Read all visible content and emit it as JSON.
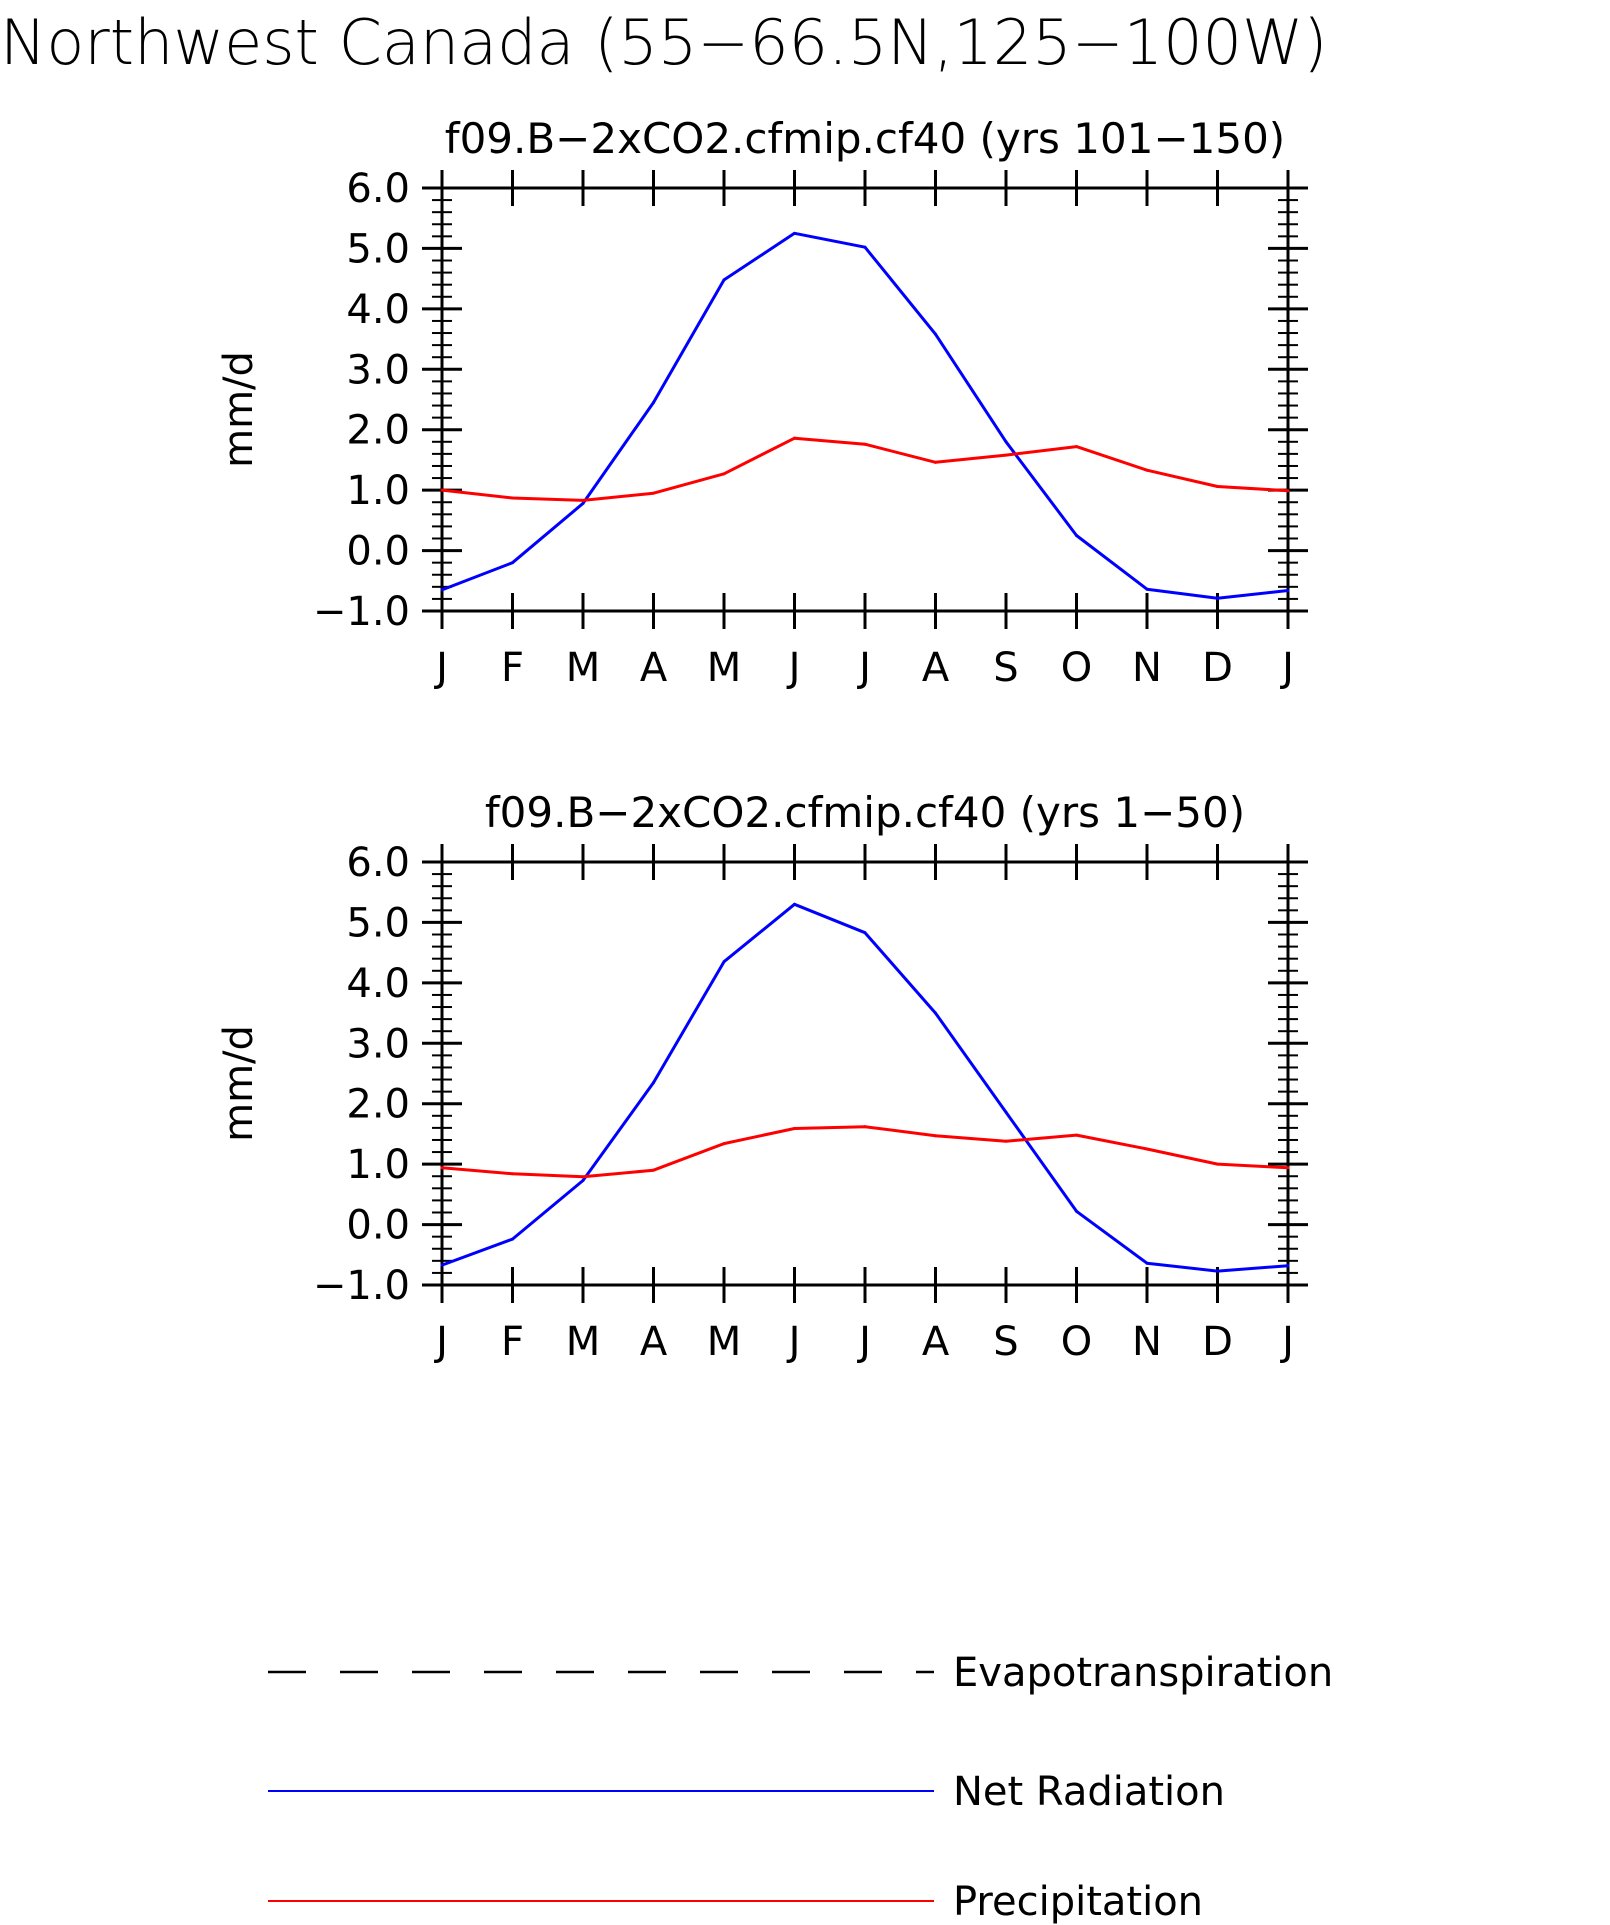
{
  "title": "Northwest Canada (55−66.5N,125−100W)",
  "colors": {
    "net_radiation": "#0000ff",
    "precipitation": "#ff0000",
    "evapotranspiration": "#000000"
  },
  "legend": [
    {
      "label": "Evapotranspiration",
      "color": "#000000",
      "style": "dashed"
    },
    {
      "label": "Net Radiation",
      "color": "#0000ff",
      "style": "solid"
    },
    {
      "label": "Precipitation",
      "color": "#ff0000",
      "style": "solid"
    }
  ],
  "chart_data": [
    {
      "type": "line",
      "title": "f09.B−2xCO2.cfmip.cf40 (yrs 101−150)",
      "ylabel": "mm/d",
      "ylim": [
        -1.0,
        6.0
      ],
      "yticks": [
        "6.0",
        "5.0",
        "4.0",
        "3.0",
        "2.0",
        "1.0",
        "0.0",
        "−1.0"
      ],
      "categories": [
        "J",
        "F",
        "M",
        "A",
        "M",
        "J",
        "J",
        "A",
        "S",
        "O",
        "N",
        "D",
        "J"
      ],
      "series": [
        {
          "name": "Net Radiation",
          "color": "#0000ff",
          "values": [
            -0.65,
            -0.2,
            0.78,
            2.45,
            4.48,
            5.25,
            5.02,
            3.58,
            1.8,
            0.25,
            -0.64,
            -0.79,
            -0.66
          ]
        },
        {
          "name": "Precipitation",
          "color": "#ff0000",
          "values": [
            1.0,
            0.87,
            0.83,
            0.95,
            1.27,
            1.86,
            1.76,
            1.46,
            1.58,
            1.72,
            1.33,
            1.06,
            0.99
          ]
        }
      ]
    },
    {
      "type": "line",
      "title": "f09.B−2xCO2.cfmip.cf40 (yrs 1−50)",
      "ylabel": "mm/d",
      "ylim": [
        -1.0,
        6.0
      ],
      "yticks": [
        "6.0",
        "5.0",
        "4.0",
        "3.0",
        "2.0",
        "1.0",
        "0.0",
        "−1.0"
      ],
      "categories": [
        "J",
        "F",
        "M",
        "A",
        "M",
        "J",
        "J",
        "A",
        "S",
        "O",
        "N",
        "D",
        "J"
      ],
      "series": [
        {
          "name": "Net Radiation",
          "color": "#0000ff",
          "values": [
            -0.67,
            -0.24,
            0.73,
            2.35,
            4.35,
            5.3,
            4.83,
            3.5,
            1.86,
            0.22,
            -0.64,
            -0.77,
            -0.68
          ]
        },
        {
          "name": "Precipitation",
          "color": "#ff0000",
          "values": [
            0.94,
            0.84,
            0.79,
            0.9,
            1.34,
            1.59,
            1.62,
            1.47,
            1.38,
            1.48,
            1.25,
            1.0,
            0.94
          ]
        }
      ]
    }
  ]
}
